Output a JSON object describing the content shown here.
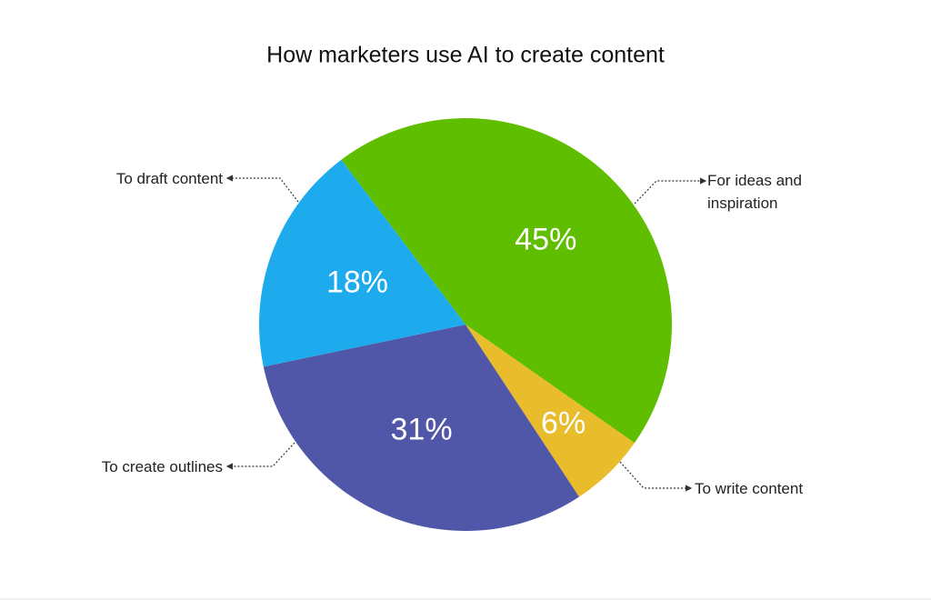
{
  "chart_data": {
    "type": "pie",
    "title": "How marketers use AI to create content",
    "categories": [
      "For ideas and inspiration",
      "To write content",
      "To create outlines",
      "To draft content"
    ],
    "values": [
      45,
      6,
      31,
      18
    ],
    "value_labels": [
      "45%",
      "6%",
      "31%",
      "18%"
    ],
    "colors": [
      "#5fbe00",
      "#e8bc2b",
      "#5157a8",
      "#1eabee"
    ]
  }
}
